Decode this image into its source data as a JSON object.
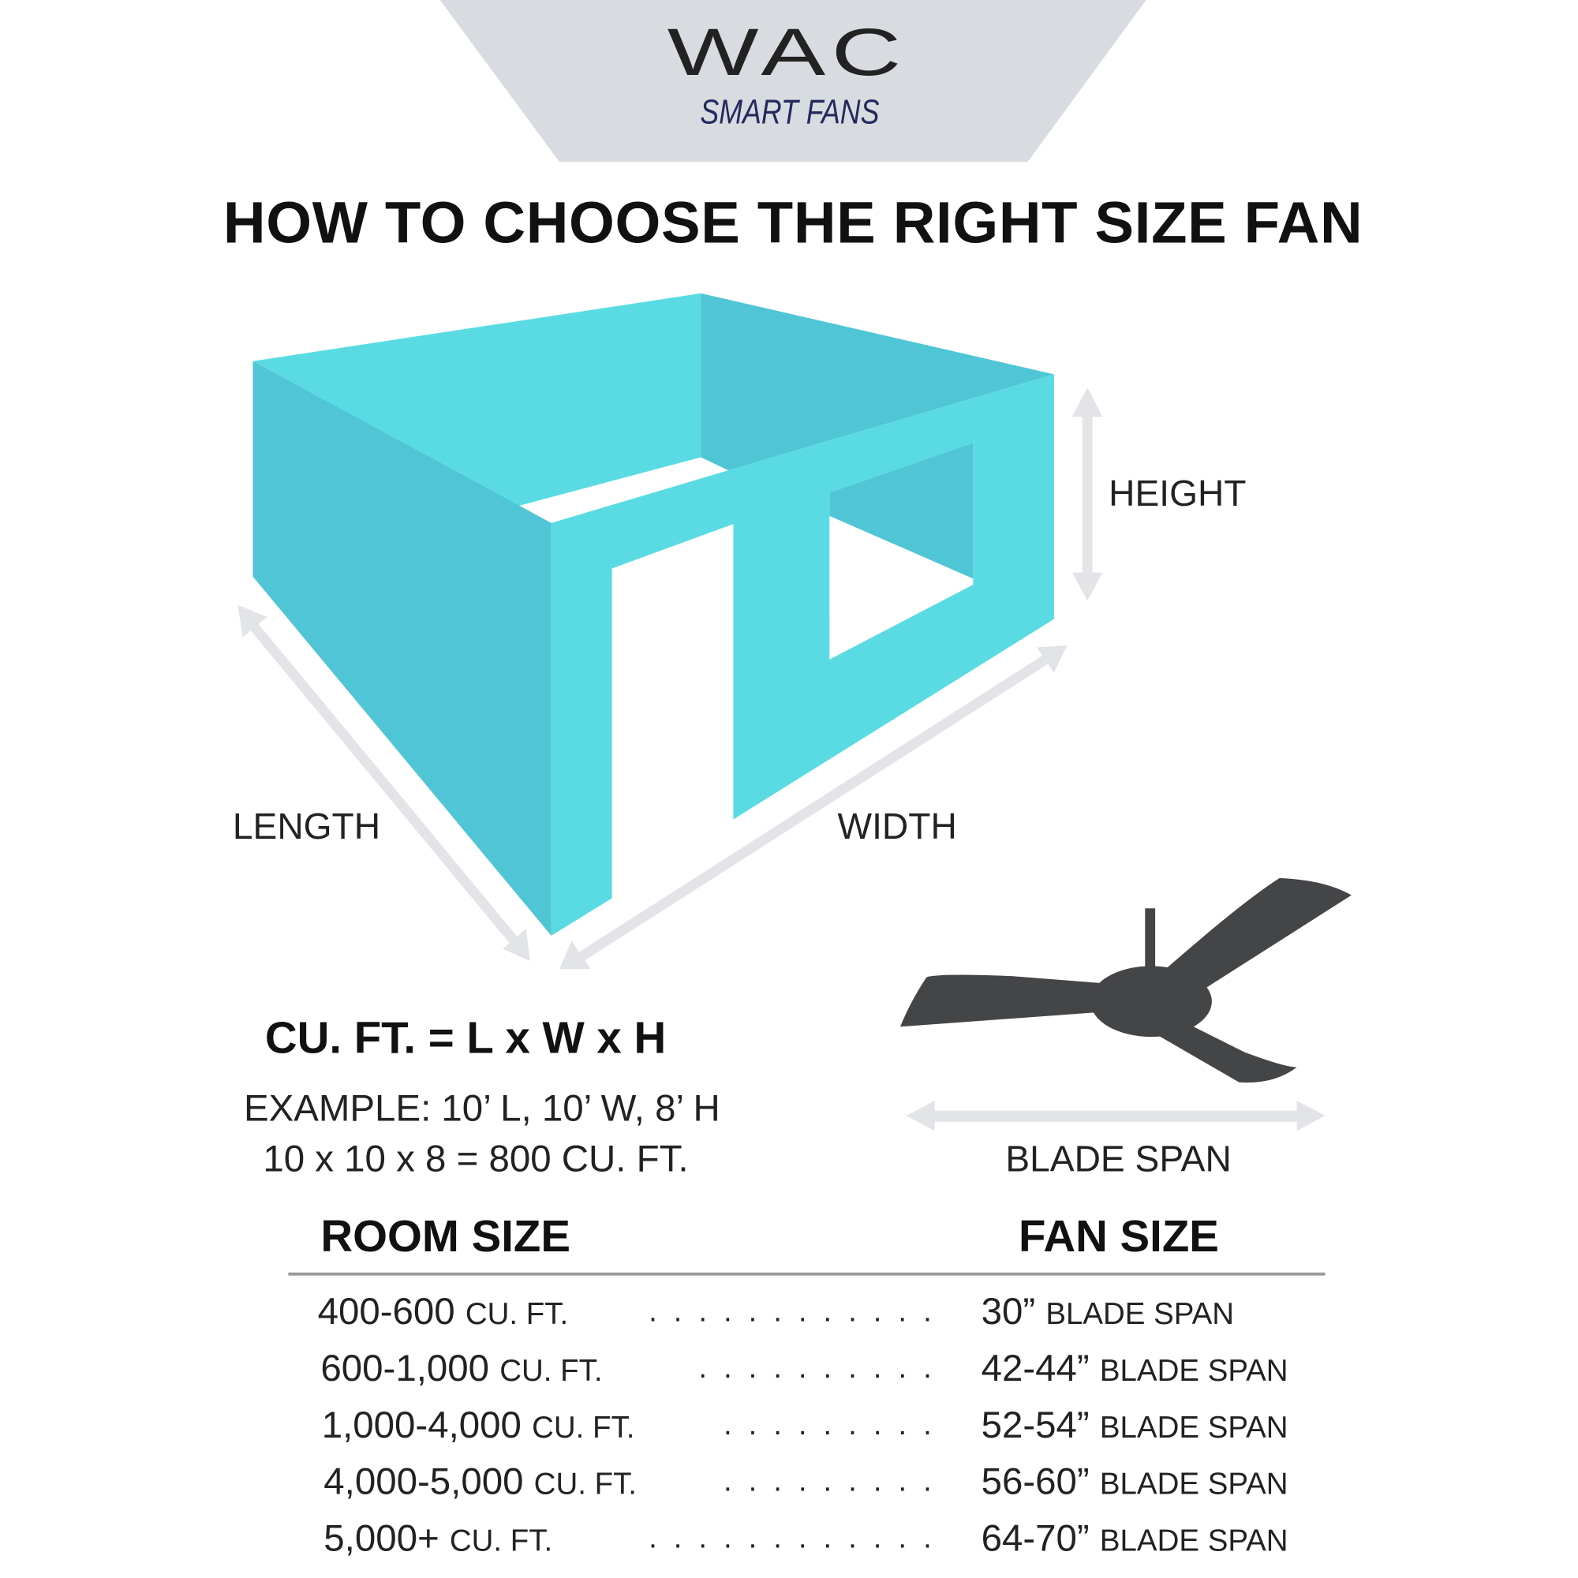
{
  "logo": {
    "brand": "WAC",
    "tagline": "SMART FANS"
  },
  "title": "HOW TO CHOOSE THE RIGHT SIZE FAN",
  "diagram": {
    "height_label": "HEIGHT",
    "length_label": "LENGTH",
    "width_label": "WIDTH",
    "blade_span_label": "BLADE SPAN"
  },
  "formula": "CU. FT. = L x W x H",
  "example_line1": "EXAMPLE: 10’ L, 10’ W, 8’ H",
  "example_line2": "10 x 10 x 8 = 800 CU. FT.",
  "table": {
    "headers": [
      "ROOM SIZE",
      "FAN SIZE"
    ],
    "rows": [
      {
        "room": "400-600",
        "room_unit": "CU. FT.",
        "fan": "30”",
        "fan_unit": "BLADE SPAN"
      },
      {
        "room": "600-1,000",
        "room_unit": "CU. FT.",
        "fan": "42-44”",
        "fan_unit": "BLADE SPAN"
      },
      {
        "room": "1,000-4,000",
        "room_unit": "CU. FT.",
        "fan": "52-54”",
        "fan_unit": "BLADE SPAN"
      },
      {
        "room": "4,000-5,000",
        "room_unit": "CU. FT.",
        "fan": "56-60”",
        "fan_unit": "BLADE SPAN"
      },
      {
        "room": "5,000+",
        "room_unit": "CU. FT.",
        "fan": "64-70”",
        "fan_unit": "BLADE SPAN"
      }
    ]
  },
  "colors": {
    "wall_light": "#5ADBE3",
    "wall_dark": "#50C5D5",
    "arrow": "#E3E4E8",
    "fan": "#444547",
    "logo_bg": "#D8DBE0"
  }
}
